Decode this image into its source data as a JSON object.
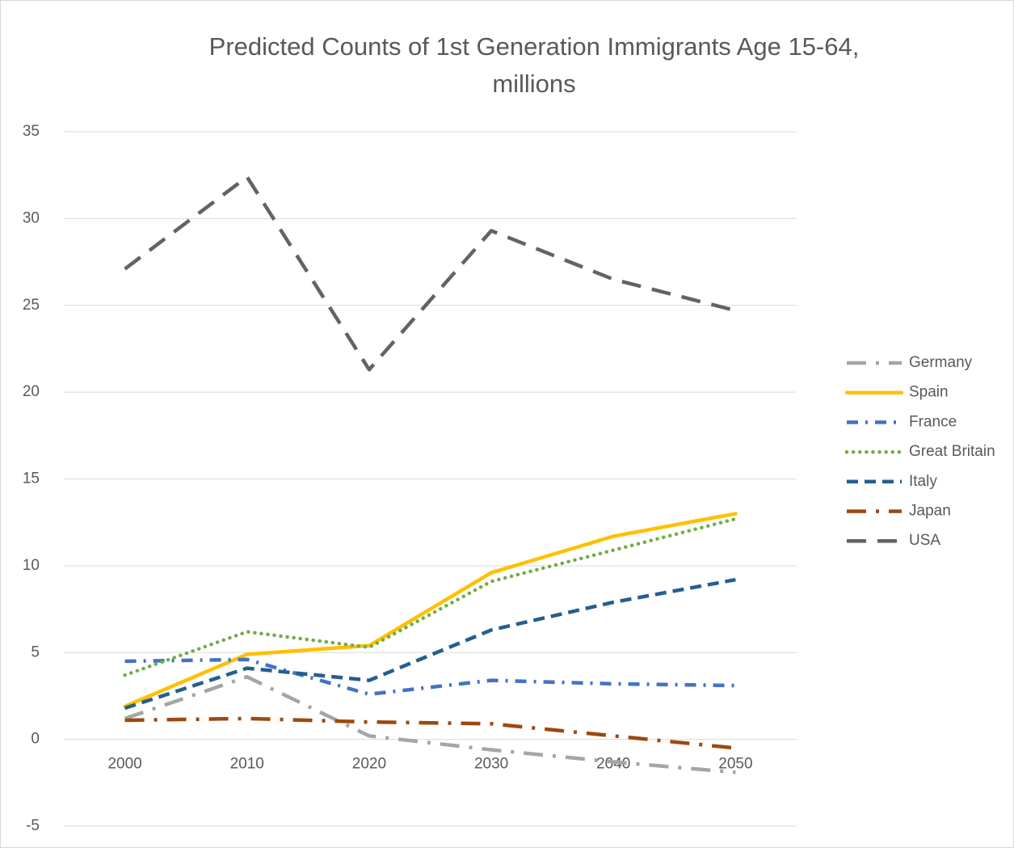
{
  "chart_data": {
    "type": "line",
    "title": "Predicted Counts of 1st Generation Immigrants Age 15-64, millions",
    "categories": [
      "2000",
      "2010",
      "2020",
      "2030",
      "2040",
      "2050"
    ],
    "series": [
      {
        "name": "Germany",
        "color": "#a5a5a5",
        "dash": "long-dash-dot",
        "values": [
          1.2,
          3.6,
          0.2,
          -0.6,
          -1.3,
          -1.9
        ]
      },
      {
        "name": "Spain",
        "color": "#ffc000",
        "dash": "solid",
        "values": [
          1.9,
          4.9,
          5.4,
          9.6,
          11.7,
          13.0
        ]
      },
      {
        "name": "France",
        "color": "#4472c4",
        "dash": "dash-dot",
        "values": [
          4.5,
          4.6,
          2.6,
          3.4,
          3.2,
          3.1
        ]
      },
      {
        "name": "Great Britain",
        "color": "#70ad47",
        "dash": "round-dot",
        "values": [
          3.7,
          6.2,
          5.3,
          9.1,
          10.9,
          12.7
        ]
      },
      {
        "name": "Italy",
        "color": "#255e91",
        "dash": "dash",
        "values": [
          1.8,
          4.1,
          3.4,
          6.3,
          7.9,
          9.2
        ]
      },
      {
        "name": "Japan",
        "color": "#9e480e",
        "dash": "long-dash-dot",
        "values": [
          1.1,
          1.2,
          1.0,
          0.9,
          0.2,
          -0.5
        ]
      },
      {
        "name": "USA",
        "color": "#636363",
        "dash": "long-dash",
        "values": [
          27.1,
          32.4,
          21.3,
          29.3,
          26.5,
          24.7
        ]
      }
    ],
    "ylim": [
      -5,
      35
    ],
    "yticks": [
      -5,
      0,
      5,
      10,
      15,
      20,
      25,
      30,
      35
    ],
    "grid": true,
    "legend": "right"
  }
}
